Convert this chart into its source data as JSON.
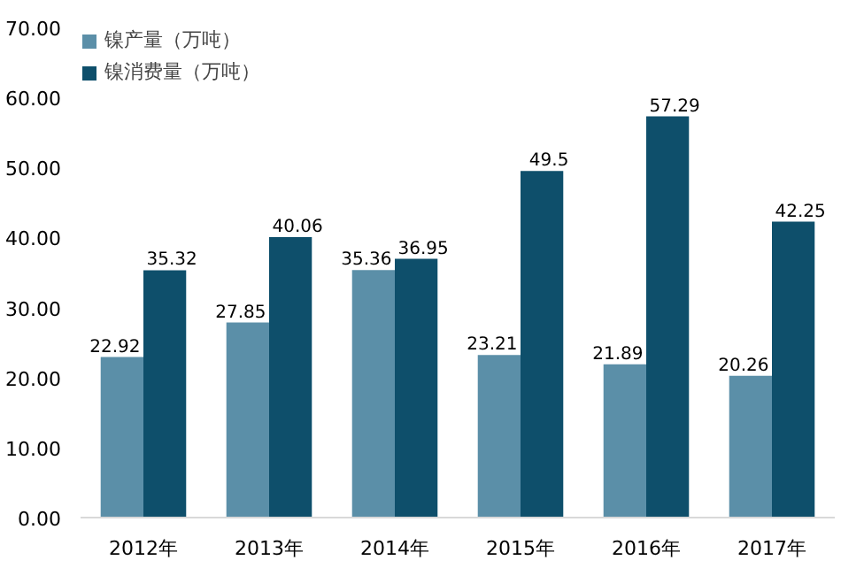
{
  "chart_data": {
    "type": "bar",
    "categories": [
      "2012年",
      "2013年",
      "2014年",
      "2015年",
      "2016年",
      "2017年"
    ],
    "series": [
      {
        "name": "镍产量（万吨）",
        "color": "#5b8fa8",
        "values": [
          22.92,
          27.85,
          35.36,
          23.21,
          21.89,
          20.26
        ]
      },
      {
        "name": "镍消费量（万吨）",
        "color": "#0e4f6b",
        "values": [
          35.32,
          40.06,
          36.95,
          49.5,
          57.29,
          42.25
        ]
      }
    ],
    "ylim": [
      0,
      70
    ],
    "yticks": [
      {
        "value": 0,
        "label": "0.00"
      },
      {
        "value": 10,
        "label": "10.00"
      },
      {
        "value": 20,
        "label": "20.00"
      },
      {
        "value": 30,
        "label": "30.00"
      },
      {
        "value": 40,
        "label": "40.00"
      },
      {
        "value": 50,
        "label": "50.00"
      },
      {
        "value": 60,
        "label": "60.00"
      },
      {
        "value": 70,
        "label": "70.00"
      }
    ],
    "grid": false,
    "legend": "top left",
    "data_labels": true
  }
}
